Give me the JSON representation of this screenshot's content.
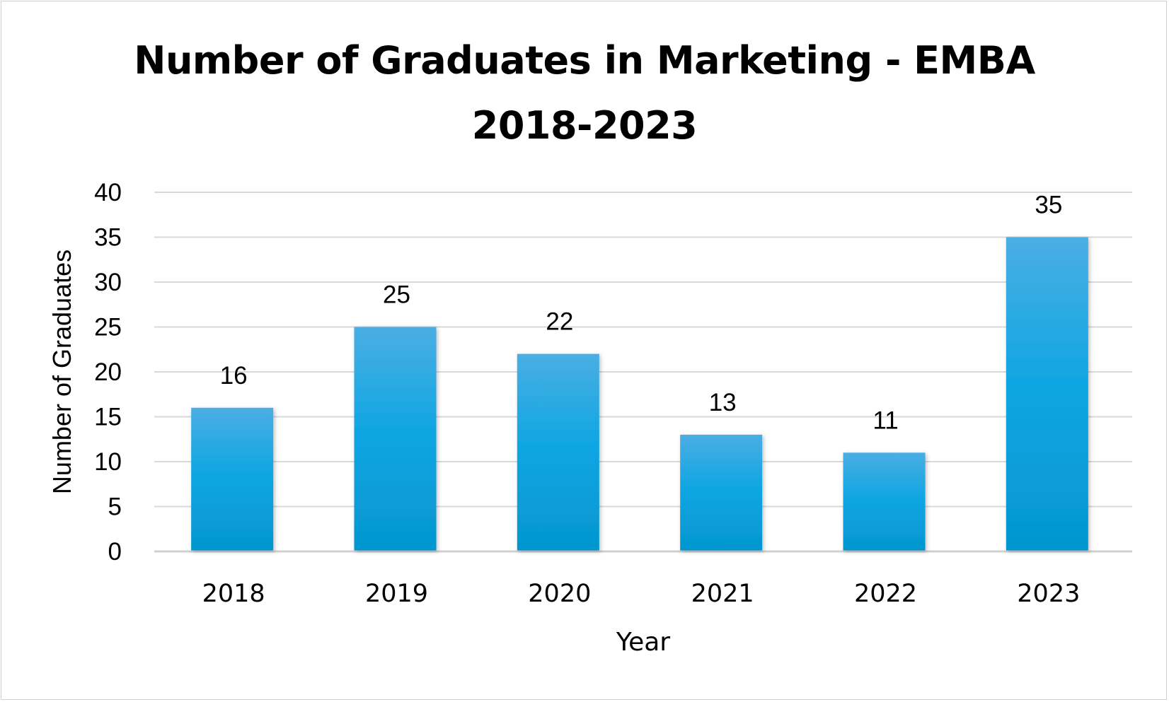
{
  "chart_data": {
    "type": "bar",
    "title_lines": [
      "Number of Graduates in Marketing - EMBA",
      "2018-2023"
    ],
    "xlabel": "Year",
    "ylabel": "Number of Graduates",
    "categories": [
      "2018",
      "2019",
      "2020",
      "2021",
      "2022",
      "2023"
    ],
    "values": [
      16,
      25,
      22,
      13,
      11,
      35
    ],
    "ylim": [
      0,
      40
    ],
    "yticks": [
      0,
      5,
      10,
      15,
      20,
      25,
      30,
      35,
      40
    ],
    "grid": true,
    "data_labels": true,
    "legend": "none",
    "colors": {
      "bar_top": "#4aaee3",
      "bar_mid": "#0ba5e2",
      "bar_bottom": "#0596cf",
      "grid": "#d9d9d9",
      "axis": "#d0d0d0"
    }
  }
}
